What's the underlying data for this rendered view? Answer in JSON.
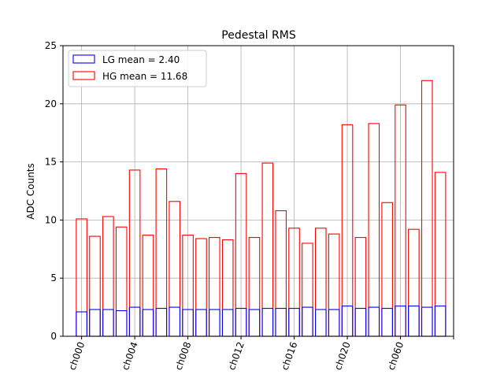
{
  "chart_data": {
    "type": "bar",
    "title": "Pedestal RMS",
    "xlabel": "",
    "ylabel": "ADC Counts",
    "ylim": [
      0,
      25
    ],
    "yticks": [
      0,
      5,
      10,
      15,
      20,
      25
    ],
    "grid": true,
    "legend_placement": "top-left",
    "x_tick_labels": [
      "ch000",
      "ch004",
      "ch008",
      "ch012",
      "ch016",
      "ch020",
      "ch060",
      ""
    ],
    "bar_count": 28,
    "series": [
      {
        "name": "LG mean = 2.40",
        "color": "#0000ff",
        "values": [
          2.1,
          2.3,
          2.3,
          2.2,
          2.5,
          2.3,
          2.4,
          2.5,
          2.3,
          2.3,
          2.3,
          2.3,
          2.4,
          2.3,
          2.4,
          2.4,
          2.4,
          2.5,
          2.3,
          2.3,
          2.6,
          2.4,
          2.5,
          2.4,
          2.6,
          2.6,
          2.5,
          2.6
        ]
      },
      {
        "name": "HG mean = 11.68",
        "color": "#ff0000",
        "values": [
          10.1,
          8.6,
          10.3,
          9.4,
          14.3,
          8.7,
          14.4,
          11.6,
          8.7,
          8.4,
          8.5,
          8.3,
          14.0,
          8.5,
          14.9,
          10.8,
          9.3,
          8.0,
          9.3,
          8.8,
          18.2,
          8.5,
          18.3,
          11.5,
          19.9,
          9.2,
          22.0,
          14.1
        ]
      }
    ]
  }
}
